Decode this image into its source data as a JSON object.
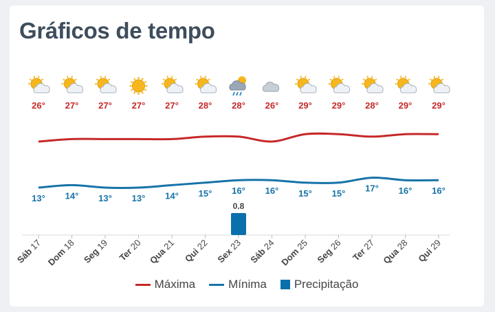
{
  "page_title": "Gráficos de tempo",
  "legend": {
    "max_label": "Máxima",
    "min_label": "Mínima",
    "precip_label": "Precipitação"
  },
  "colors": {
    "max": "#c62828",
    "min": "#1673a8",
    "precip": "#0a70ab",
    "title": "#3e4d5c",
    "axis_text": "#444444"
  },
  "chart_data": {
    "type": "line",
    "categories": [
      "Sáb 17",
      "Dom 18",
      "Seg 19",
      "Ter 20",
      "Qua 21",
      "Qui 22",
      "Sex 23",
      "Sáb 24",
      "Dom 25",
      "Seg 26",
      "Ter 27",
      "Qua 28",
      "Qui 29"
    ],
    "icons": [
      "partly-sunny-icon",
      "partly-sunny-icon",
      "partly-sunny-icon",
      "sun-icon",
      "partly-sunny-icon",
      "partly-sunny-icon",
      "rain-cloud-icon",
      "cloud-icon",
      "partly-sunny-icon",
      "partly-sunny-icon",
      "partly-sunny-icon",
      "partly-sunny-icon",
      "partly-sunny-icon"
    ],
    "series": [
      {
        "name": "Máxima",
        "values": [
          26,
          27,
          27,
          27,
          27,
          28,
          28,
          26,
          29,
          29,
          28,
          29,
          29
        ],
        "unit": "°"
      },
      {
        "name": "Mínima",
        "values": [
          13,
          14,
          13,
          13,
          14,
          15,
          16,
          16,
          15,
          15,
          17,
          16,
          16
        ],
        "unit": "°"
      },
      {
        "name": "Precipitação",
        "values": [
          0,
          0,
          0,
          0,
          0,
          0,
          0.8,
          0,
          0,
          0,
          0,
          0,
          0
        ],
        "type": "bar"
      }
    ]
  }
}
